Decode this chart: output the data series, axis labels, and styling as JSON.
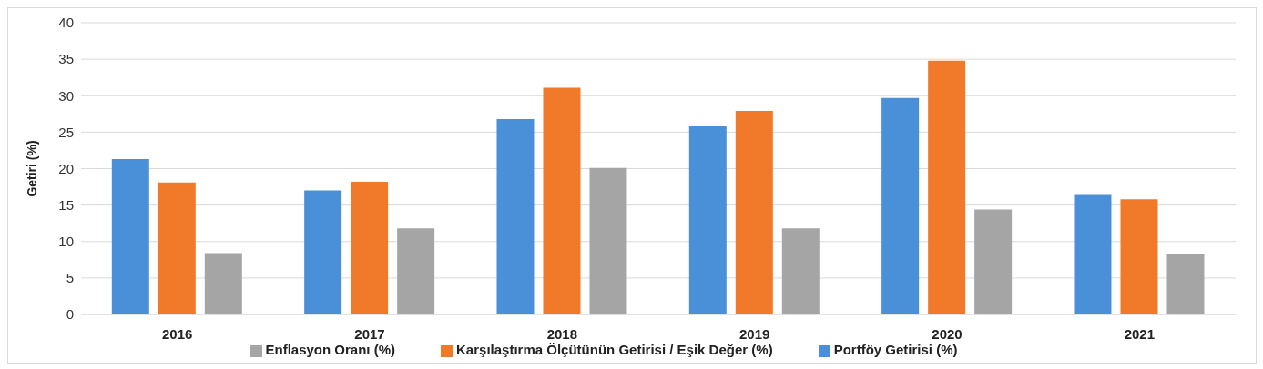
{
  "chart_data": {
    "type": "bar",
    "ylabel": "Getiri (%)",
    "categories": [
      "2016",
      "2017",
      "2018",
      "2019",
      "2020",
      "2021"
    ],
    "series": [
      {
        "name": "Portföy Getirisi (%)",
        "color": "#4a90d9",
        "values": [
          21.3,
          17.0,
          26.8,
          25.8,
          29.7,
          16.4
        ]
      },
      {
        "name": "Karşılaştırma Ölçütünün Getirisi / Eşik Değer (%)",
        "color": "#f07a2a",
        "values": [
          18.1,
          18.2,
          31.1,
          27.9,
          34.8,
          15.8
        ]
      },
      {
        "name": "Enflasyon Oranı (%)",
        "color": "#a5a5a5",
        "values": [
          8.4,
          11.8,
          20.1,
          11.8,
          14.4,
          8.3
        ]
      }
    ],
    "ylim": [
      0,
      40
    ],
    "yticks": [
      0,
      5,
      10,
      15,
      20,
      25,
      30,
      35,
      40
    ],
    "grid": "y",
    "legend": "bottom"
  }
}
